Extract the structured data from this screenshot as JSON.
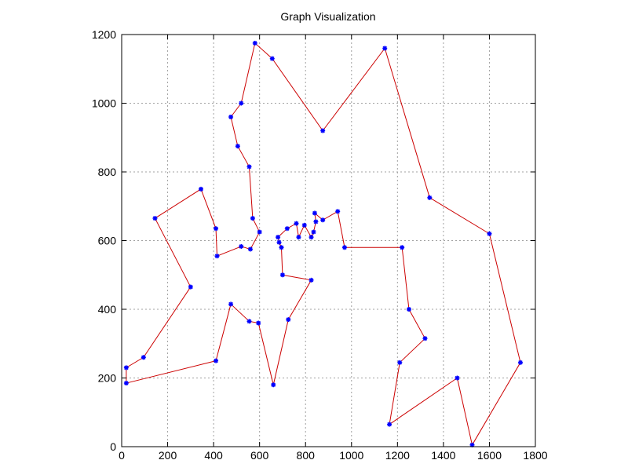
{
  "chart_data": {
    "type": "line",
    "title": "Graph Visualization",
    "xlabel": "",
    "ylabel": "",
    "xlim": [
      0,
      1800
    ],
    "ylim": [
      0,
      1200
    ],
    "xticks": [
      0,
      200,
      400,
      600,
      800,
      1000,
      1200,
      1400,
      1600,
      1800
    ],
    "yticks": [
      0,
      200,
      400,
      600,
      800,
      1000,
      1200
    ],
    "grid": true,
    "line_color": "#cc0000",
    "point_color": "#0000ff",
    "series": [
      {
        "x": [
          20,
          95,
          300,
          145,
          345,
          410,
          415,
          520,
          560,
          600,
          570,
          555,
          505,
          475,
          520,
          580,
          655,
          875,
          1145,
          1340,
          1600,
          1735,
          1525,
          1460,
          1165,
          1210,
          1320,
          1250,
          1220,
          970,
          940,
          875,
          840,
          845,
          835,
          825,
          795,
          770,
          760,
          720,
          680,
          685,
          695,
          700,
          825,
          725,
          660,
          595,
          555,
          475,
          410,
          20,
          20
        ],
        "y": [
          230,
          260,
          465,
          665,
          750,
          635,
          555,
          583,
          575,
          625,
          665,
          815,
          875,
          960,
          1000,
          1175,
          1130,
          920,
          1160,
          725,
          620,
          245,
          5,
          200,
          65,
          245,
          315,
          400,
          580,
          580,
          685,
          660,
          680,
          655,
          625,
          610,
          645,
          610,
          650,
          635,
          610,
          595,
          580,
          500,
          485,
          370,
          180,
          360,
          365,
          415,
          250,
          185,
          230
        ]
      }
    ]
  }
}
